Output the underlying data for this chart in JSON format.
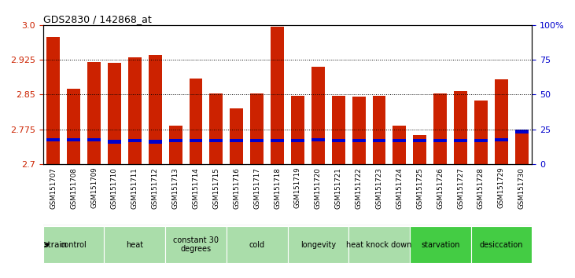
{
  "title": "GDS2830 / 142868_at",
  "samples": [
    "GSM151707",
    "GSM151708",
    "GSM151709",
    "GSM151710",
    "GSM151711",
    "GSM151712",
    "GSM151713",
    "GSM151714",
    "GSM151715",
    "GSM151716",
    "GSM151717",
    "GSM151718",
    "GSM151719",
    "GSM151720",
    "GSM151721",
    "GSM151722",
    "GSM151723",
    "GSM151724",
    "GSM151725",
    "GSM151726",
    "GSM151727",
    "GSM151728",
    "GSM151729",
    "GSM151730"
  ],
  "bar_values": [
    2.975,
    2.862,
    2.92,
    2.918,
    2.93,
    2.936,
    2.782,
    2.885,
    2.852,
    2.82,
    2.852,
    2.997,
    2.848,
    2.91,
    2.847,
    2.845,
    2.848,
    2.783,
    2.763,
    2.853,
    2.857,
    2.837,
    2.883,
    2.77
  ],
  "percentile_values": [
    2.752,
    2.752,
    2.752,
    2.748,
    2.75,
    2.748,
    2.75,
    2.75,
    2.75,
    2.75,
    2.75,
    2.75,
    2.75,
    2.752,
    2.75,
    2.75,
    2.75,
    2.75,
    2.75,
    2.75,
    2.75,
    2.75,
    2.752,
    2.77
  ],
  "groups": [
    {
      "label": "control",
      "start": 0,
      "end": 2,
      "color": "#aaddaa"
    },
    {
      "label": "heat",
      "start": 3,
      "end": 5,
      "color": "#aaddaa"
    },
    {
      "label": "constant 30\ndegrees",
      "start": 6,
      "end": 8,
      "color": "#aaddaa"
    },
    {
      "label": "cold",
      "start": 9,
      "end": 11,
      "color": "#aaddaa"
    },
    {
      "label": "longevity",
      "start": 12,
      "end": 14,
      "color": "#aaddaa"
    },
    {
      "label": "heat knock down",
      "start": 15,
      "end": 17,
      "color": "#aaddaa"
    },
    {
      "label": "starvation",
      "start": 18,
      "end": 20,
      "color": "#44cc44"
    },
    {
      "label": "desiccation",
      "start": 21,
      "end": 23,
      "color": "#44cc44"
    }
  ],
  "ylim_left": [
    2.7,
    3.0
  ],
  "yticks_left": [
    2.7,
    2.775,
    2.85,
    2.925,
    3.0
  ],
  "ylim_right": [
    0,
    100
  ],
  "yticks_right": [
    0,
    25,
    50,
    75,
    100
  ],
  "bar_color": "#cc2200",
  "percentile_color": "#0000cc",
  "background_color": "#ffffff",
  "plot_bg_color": "#ffffff",
  "sample_bg_color": "#cccccc",
  "xlabel_color": "#cc2200",
  "ylabel_right_color": "#0000cc"
}
